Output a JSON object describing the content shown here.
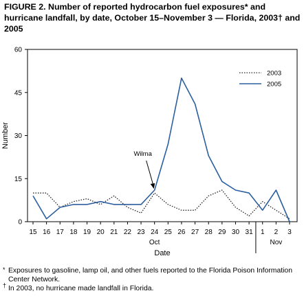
{
  "header": {
    "title": "FIGURE 2. Number of reported hydrocarbon fuel exposures* and hurricane landfall, by date, October 15–November 3 — Florida, 2003† and 2005"
  },
  "footnotes": [
    {
      "mark": "*",
      "text": "Exposures to gasoline, lamp oil, and other fuels reported to the Florida Poison Information Center Network."
    },
    {
      "mark": "†",
      "text": "In 2003, no hurricane made landfall in Florida."
    }
  ],
  "chart_data": {
    "type": "line",
    "x": [
      "15",
      "16",
      "17",
      "18",
      "19",
      "20",
      "21",
      "22",
      "23",
      "24",
      "25",
      "26",
      "27",
      "28",
      "29",
      "30",
      "31",
      "1",
      "2",
      "3"
    ],
    "month_labels": [
      {
        "label": "Oct",
        "at": "24"
      },
      {
        "label": "Nov",
        "at": "2"
      }
    ],
    "month_separator_after": "31",
    "series": [
      {
        "name": "2003",
        "style": "dotted",
        "color": "#222222",
        "values": [
          10,
          10,
          5,
          7,
          8,
          6,
          9,
          5,
          3,
          10,
          6,
          4,
          4,
          9,
          11,
          5,
          2,
          7,
          4,
          1
        ]
      },
      {
        "name": "2005",
        "style": "solid",
        "color": "#2b5e9e",
        "values": [
          9,
          1,
          5,
          6,
          6,
          7,
          6,
          6,
          6,
          11,
          27,
          50,
          41,
          23,
          14,
          11,
          10,
          4,
          11,
          0
        ]
      }
    ],
    "xlabel": "Date",
    "ylabel": "Number",
    "ylim": [
      0,
      60
    ],
    "yticks": [
      0,
      15,
      30,
      45,
      60
    ],
    "legend": "top-right",
    "annotation": {
      "text": "Wilma",
      "at": "24"
    },
    "grid": false
  }
}
